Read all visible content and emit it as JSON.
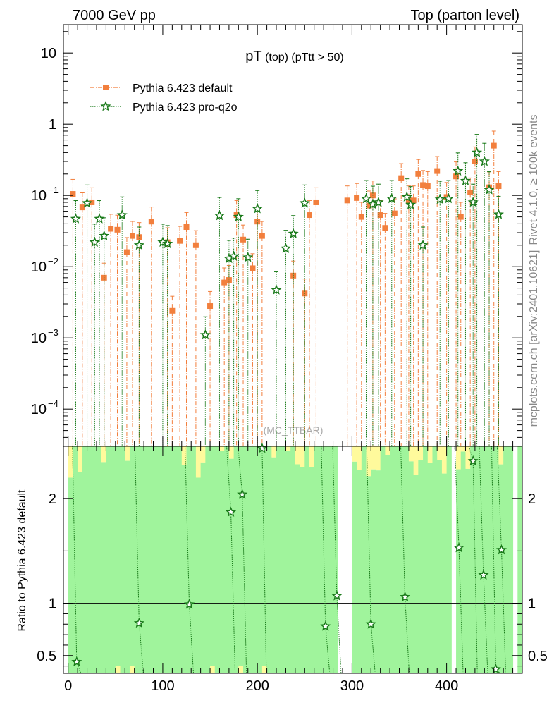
{
  "header": {
    "left": "7000 GeV pp",
    "right": "Top (parton level)"
  },
  "side_labels": {
    "rivet": "Rivet 4.1.0, ≥ 100k events",
    "mcplots": "mcplots.cern.ch [arXiv:2401.10621]"
  },
  "watermark": "(MC_TTBAR)",
  "chart_data": [
    {
      "type": "scatter",
      "panel": "main",
      "title": {
        "main": "pT",
        "sub": "(top) (pTtt > 50)"
      },
      "yscale": "log",
      "xlim": [
        -5,
        480
      ],
      "ylim": [
        3e-05,
        25
      ],
      "y_ticks": [
        {
          "value": 10,
          "label": "10"
        },
        {
          "value": 1,
          "label": "1"
        },
        {
          "value": 0.1,
          "label": "10",
          "exp": "−1"
        },
        {
          "value": 0.01,
          "label": "10",
          "exp": "−2"
        },
        {
          "value": 0.001,
          "label": "10",
          "exp": "−3"
        },
        {
          "value": 0.0001,
          "label": "10",
          "exp": "−4"
        }
      ],
      "series": [
        {
          "name": "Pythia 6.423 default",
          "color": "#f27f3d",
          "marker": "square",
          "line": "dashdot",
          "points": [
            [
              5,
              0.105
            ],
            [
              15,
              0.068
            ],
            [
              25,
              0.08
            ],
            [
              38,
              0.007
            ],
            [
              45,
              0.034
            ],
            [
              52,
              0.033
            ],
            [
              62,
              0.016
            ],
            [
              68,
              0.027
            ],
            [
              75,
              0.026
            ],
            [
              88,
              0.043
            ],
            [
              105,
              0.022
            ],
            [
              110,
              0.0024
            ],
            [
              118,
              0.023
            ],
            [
              125,
              0.036
            ],
            [
              135,
              0.02
            ],
            [
              150,
              0.0028
            ],
            [
              165,
              0.006
            ],
            [
              170,
              0.0065
            ],
            [
              178,
              0.053
            ],
            [
              185,
              0.024
            ],
            [
              195,
              0.0095
            ],
            [
              200,
              0.043
            ],
            [
              205,
              0.027
            ],
            [
              238,
              0.0075
            ],
            [
              250,
              0.0042
            ],
            [
              255,
              0.053
            ],
            [
              262,
              0.08
            ],
            [
              295,
              0.085
            ],
            [
              305,
              0.092
            ],
            [
              310,
              0.05
            ],
            [
              318,
              0.072
            ],
            [
              322,
              0.1
            ],
            [
              330,
              0.053
            ],
            [
              335,
              0.035
            ],
            [
              345,
              0.056
            ],
            [
              352,
              0.175
            ],
            [
              360,
              0.085
            ],
            [
              365,
              0.085
            ],
            [
              370,
              0.2
            ],
            [
              375,
              0.14
            ],
            [
              380,
              0.135
            ],
            [
              390,
              0.22
            ],
            [
              400,
              0.095
            ],
            [
              410,
              0.185
            ],
            [
              415,
              0.05
            ],
            [
              425,
              0.11
            ],
            [
              430,
              0.3
            ],
            [
              445,
              0.13
            ],
            [
              450,
              0.5
            ],
            [
              455,
              0.135
            ]
          ]
        },
        {
          "name": "Pythia 6.423 pro-q2o",
          "color": "#1a7a1a",
          "marker": "star",
          "line": "dotted",
          "points": [
            [
              8,
              0.047
            ],
            [
              20,
              0.078
            ],
            [
              28,
              0.022
            ],
            [
              33,
              0.047
            ],
            [
              38,
              0.027
            ],
            [
              57,
              0.053
            ],
            [
              75,
              0.02
            ],
            [
              100,
              0.022
            ],
            [
              105,
              0.021
            ],
            [
              145,
              0.0011
            ],
            [
              160,
              0.052
            ],
            [
              170,
              0.013
            ],
            [
              175,
              0.014
            ],
            [
              180,
              0.05
            ],
            [
              190,
              0.0135
            ],
            [
              200,
              0.065
            ],
            [
              220,
              0.0047
            ],
            [
              230,
              0.018
            ],
            [
              238,
              0.029
            ],
            [
              250,
              0.078
            ],
            [
              315,
              0.09
            ],
            [
              322,
              0.075
            ],
            [
              328,
              0.08
            ],
            [
              342,
              0.09
            ],
            [
              358,
              0.095
            ],
            [
              362,
              0.074
            ],
            [
              375,
              0.02
            ],
            [
              393,
              0.088
            ],
            [
              402,
              0.09
            ],
            [
              412,
              0.22
            ],
            [
              420,
              0.16
            ],
            [
              428,
              0.08
            ],
            [
              432,
              0.4
            ],
            [
              440,
              0.3
            ],
            [
              445,
              0.12
            ],
            [
              455,
              0.054
            ]
          ]
        }
      ]
    },
    {
      "type": "scatter",
      "panel": "ratio",
      "ylabel": "Ratio to Pythia 6.423 default",
      "xlim": [
        -5,
        480
      ],
      "ylim": [
        0.33,
        2.5
      ],
      "y_ticks": [
        {
          "value": 0.5,
          "label": "0.5"
        },
        {
          "value": 1,
          "label": "1"
        },
        {
          "value": 2,
          "label": "2"
        }
      ],
      "x_ticks": [
        {
          "value": 0,
          "label": "0"
        },
        {
          "value": 100,
          "label": "100"
        },
        {
          "value": 200,
          "label": "200"
        },
        {
          "value": 300,
          "label": "300"
        },
        {
          "value": 400,
          "label": "400"
        }
      ],
      "reference_line": 1,
      "band_colors": {
        "inner": "#a0f49c",
        "outer": "#fffa9c"
      },
      "series": [
        {
          "name": "Pythia 6.423 pro-q2o",
          "color": "#1a7a1a",
          "marker": "star",
          "points": [
            [
              9,
              0.44
            ],
            [
              75,
              0.81
            ],
            [
              128,
              0.99
            ],
            [
              172,
              1.87
            ],
            [
              184,
              2.04
            ],
            [
              205,
              2.48
            ],
            [
              272,
              0.78
            ],
            [
              284,
              1.07
            ],
            [
              320,
              0.8
            ],
            [
              356,
              1.06
            ],
            [
              413,
              1.53
            ],
            [
              428,
              2.36
            ],
            [
              439,
              1.27
            ],
            [
              452,
              0.37
            ],
            [
              458,
              1.51
            ]
          ]
        }
      ]
    }
  ]
}
